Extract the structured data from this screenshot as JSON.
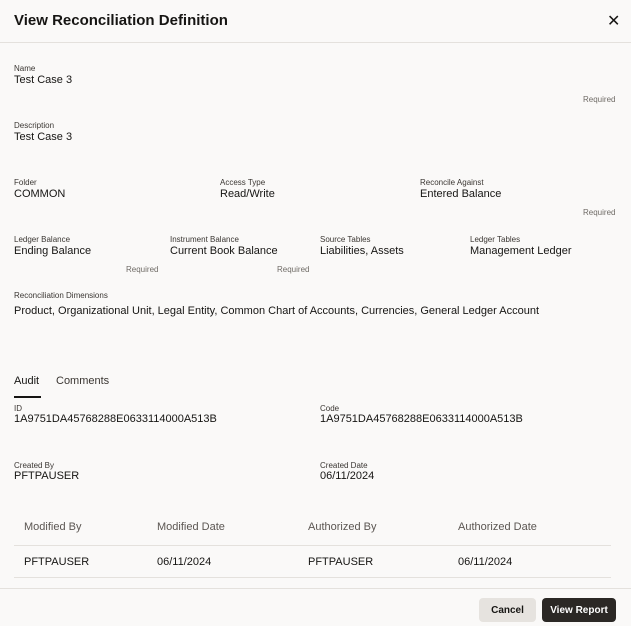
{
  "dialog": {
    "title": "View Reconciliation Definition",
    "close_icon": "close-icon"
  },
  "fields": {
    "name": {
      "label": "Name",
      "value": "Test Case 3",
      "required": "Required"
    },
    "description": {
      "label": "Description",
      "value": "Test Case 3"
    },
    "folder": {
      "label": "Folder",
      "value": "COMMON"
    },
    "access_type": {
      "label": "Access Type",
      "value": "Read/Write"
    },
    "reconcile_against": {
      "label": "Reconcile Against",
      "value": "Entered Balance",
      "required": "Required"
    },
    "ledger_balance": {
      "label": "Ledger Balance",
      "value": "Ending Balance",
      "required": "Required"
    },
    "instrument_balance": {
      "label": "Instrument Balance",
      "value": "Current Book Balance",
      "required": "Required"
    },
    "source_tables": {
      "label": "Source Tables",
      "value": "Liabilities, Assets"
    },
    "ledger_tables": {
      "label": "Ledger Tables",
      "value": "Management Ledger"
    },
    "dimensions": {
      "label": "Reconciliation Dimensions",
      "value": "Product, Organizational Unit, Legal Entity, Common Chart of Accounts, Currencies, General Ledger Account"
    }
  },
  "tabs": [
    {
      "label": "Audit",
      "active": true
    },
    {
      "label": "Comments",
      "active": false
    }
  ],
  "audit": {
    "id": {
      "label": "ID",
      "value": "1A9751DA45768288E0633114000A513B"
    },
    "code": {
      "label": "Code",
      "value": "1A9751DA45768288E0633114000A513B"
    },
    "created_by": {
      "label": "Created By",
      "value": "PFTPAUSER"
    },
    "created_date": {
      "label": "Created Date",
      "value": "06/11/2024"
    },
    "table": {
      "headers": [
        "Modified By",
        "Modified Date",
        "Authorized By",
        "Authorized Date"
      ],
      "rows": [
        [
          "PFTPAUSER",
          "06/11/2024",
          "PFTPAUSER",
          "06/11/2024"
        ]
      ]
    }
  },
  "footer": {
    "cancel": "Cancel",
    "view_report": "View Report"
  }
}
